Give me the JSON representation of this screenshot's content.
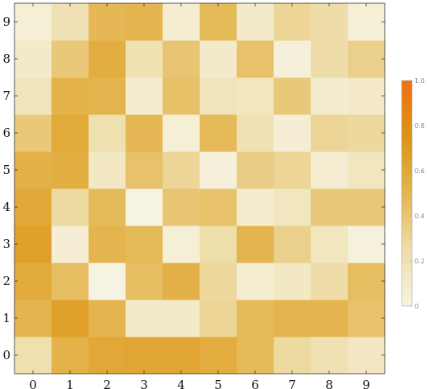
{
  "chart_data": {
    "type": "heatmap",
    "title": "",
    "xlabel": "",
    "ylabel": "",
    "x_categories": [
      "0",
      "1",
      "2",
      "3",
      "4",
      "5",
      "6",
      "7",
      "8",
      "9"
    ],
    "y_categories": [
      "0",
      "1",
      "2",
      "3",
      "4",
      "5",
      "6",
      "7",
      "8",
      "9"
    ],
    "z_range": [
      0,
      1
    ],
    "colorbar_ticks": [
      "0",
      "0.2",
      "0.4",
      "0.6",
      "0.8",
      "1.0"
    ],
    "color_stops": [
      "#F7F3E2",
      "#EEDDA8",
      "#E4B54E",
      "#DC9414",
      "#F07010"
    ],
    "grid": false,
    "legend": "right",
    "values": [
      [
        0.22,
        0.52,
        0.6,
        0.62,
        0.62,
        0.57,
        0.47,
        0.27,
        0.2,
        0.14
      ],
      [
        0.5,
        0.65,
        0.5,
        0.1,
        0.1,
        0.3,
        0.47,
        0.5,
        0.5,
        0.42
      ],
      [
        0.58,
        0.45,
        0.0,
        0.45,
        0.53,
        0.28,
        0.07,
        0.13,
        0.25,
        0.45
      ],
      [
        0.65,
        0.06,
        0.5,
        0.47,
        0.05,
        0.24,
        0.5,
        0.33,
        0.15,
        0.02
      ],
      [
        0.6,
        0.27,
        0.47,
        0.0,
        0.4,
        0.42,
        0.08,
        0.15,
        0.38,
        0.38
      ],
      [
        0.53,
        0.55,
        0.13,
        0.42,
        0.3,
        0.03,
        0.35,
        0.3,
        0.07,
        0.15
      ],
      [
        0.38,
        0.58,
        0.22,
        0.48,
        0.05,
        0.47,
        0.2,
        0.06,
        0.3,
        0.28
      ],
      [
        0.17,
        0.52,
        0.5,
        0.08,
        0.43,
        0.17,
        0.15,
        0.38,
        0.08,
        0.11
      ],
      [
        0.1,
        0.38,
        0.55,
        0.21,
        0.4,
        0.1,
        0.42,
        0.03,
        0.25,
        0.33
      ],
      [
        0.05,
        0.2,
        0.48,
        0.5,
        0.07,
        0.47,
        0.1,
        0.3,
        0.25,
        0.05
      ]
    ]
  }
}
